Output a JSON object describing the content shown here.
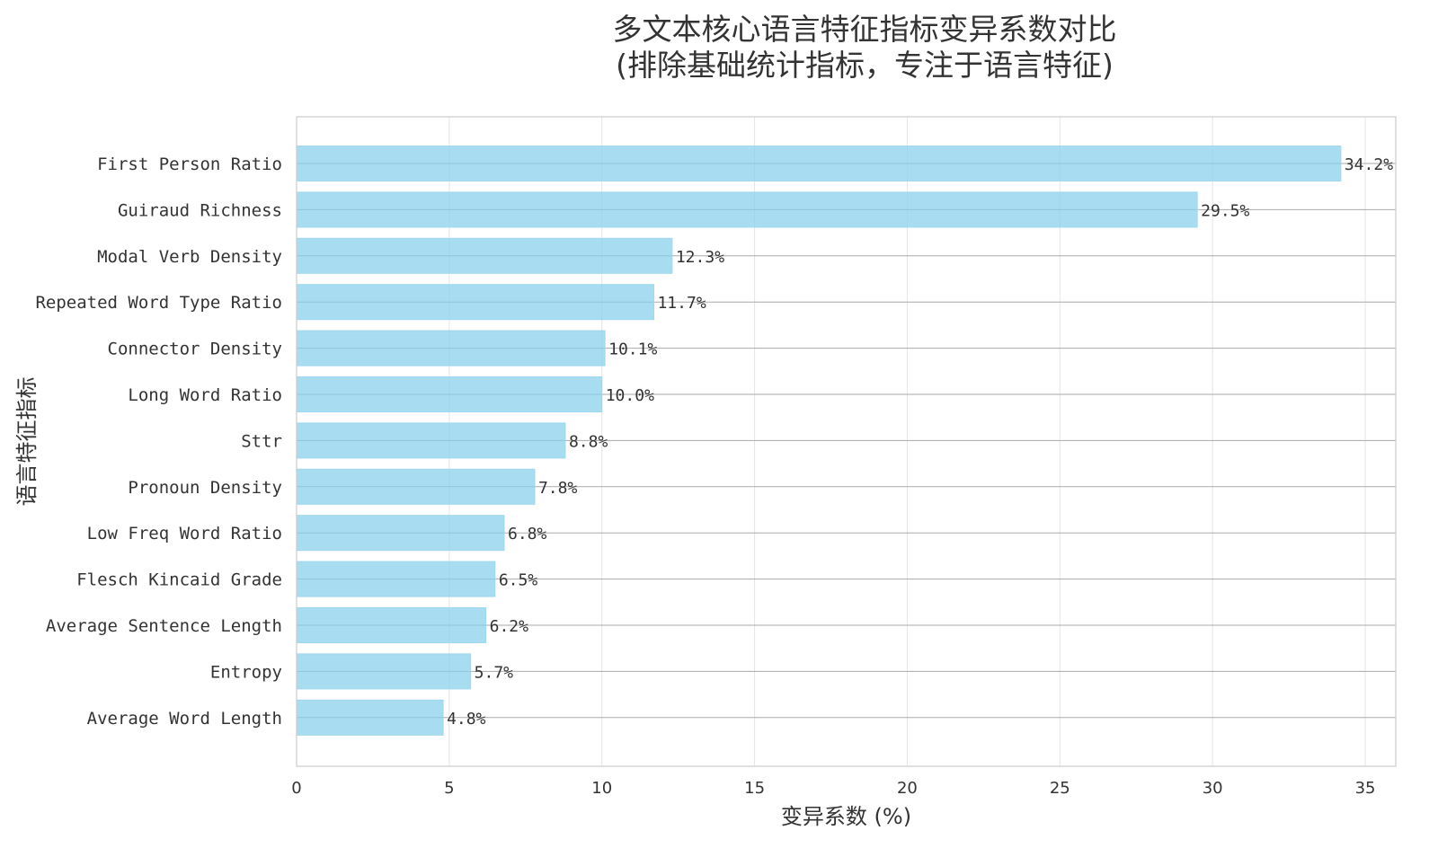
{
  "chart_data": {
    "type": "bar",
    "orientation": "horizontal",
    "title": "多文本核心语言特征指标变异系数对比",
    "subtitle": "(排除基础统计指标，专注于语言特征)",
    "xlabel": "变异系数 (%)",
    "ylabel": "语言特征指标",
    "categories": [
      "First Person Ratio",
      "Guiraud Richness",
      "Modal Verb Density",
      "Repeated Word Type Ratio",
      "Connector Density",
      "Long Word Ratio",
      "Sttr",
      "Pronoun Density",
      "Low Freq Word Ratio",
      "Flesch Kincaid Grade",
      "Average Sentence Length",
      "Entropy",
      "Average Word Length"
    ],
    "values": [
      34.2,
      29.5,
      12.3,
      11.7,
      10.1,
      10.0,
      8.8,
      7.8,
      6.8,
      6.5,
      6.2,
      5.7,
      4.8
    ],
    "value_labels": [
      "34.2%",
      "29.5%",
      "12.3%",
      "11.7%",
      "10.1%",
      "10.0%",
      "8.8%",
      "7.8%",
      "6.8%",
      "6.5%",
      "6.2%",
      "5.7%",
      "4.8%"
    ],
    "xlim": [
      0,
      36
    ],
    "xticks": [
      0,
      5,
      10,
      15,
      20,
      25,
      30,
      35
    ],
    "xtick_labels": [
      "0",
      "5",
      "10",
      "15",
      "20",
      "25",
      "30",
      "35"
    ],
    "grid": true,
    "colors": {
      "bar": "#87CEEB",
      "bar_edge": "#9FD8F0",
      "grid": "#E5E5E5",
      "row_line": "#AAAAAA",
      "frame": "#CCCCCC"
    }
  }
}
